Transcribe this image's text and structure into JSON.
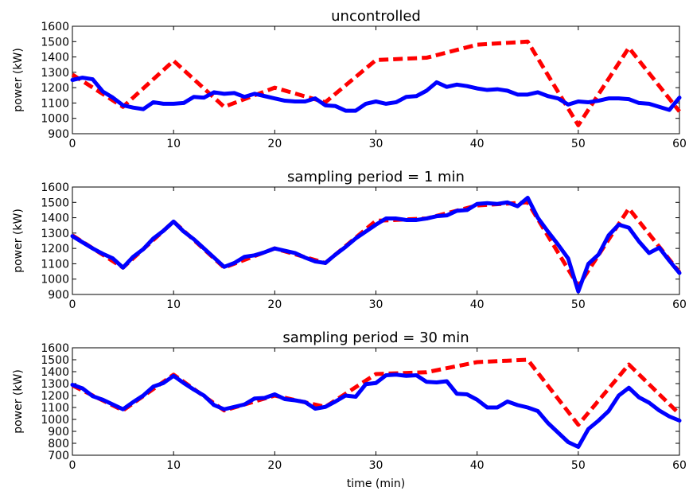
{
  "chart_data": [
    {
      "type": "line",
      "title": "uncontrolled",
      "xlabel": "",
      "ylabel": "power (kW)",
      "xlim": [
        0,
        60
      ],
      "ylim": [
        900,
        1600
      ],
      "xticks": [
        "0",
        "10",
        "20",
        "30",
        "40",
        "50",
        "60"
      ],
      "yticks": [
        "900",
        "1000",
        "1100",
        "1200",
        "1300",
        "1400",
        "1500",
        "1600"
      ],
      "grid": false,
      "series": [
        {
          "style": "dashed",
          "color": "#ff0000",
          "x": [
            0,
            5,
            10,
            15,
            20,
            25,
            30,
            35,
            40,
            45,
            50,
            55,
            60
          ],
          "y": [
            1285,
            1075,
            1375,
            1075,
            1200,
            1105,
            1380,
            1395,
            1480,
            1500,
            955,
            1460,
            1045
          ]
        },
        {
          "style": "solid",
          "color": "#0000ff",
          "x": [
            0,
            1,
            2,
            3,
            4,
            5,
            6,
            7,
            8,
            9,
            10,
            11,
            12,
            13,
            14,
            15,
            16,
            17,
            18,
            19,
            20,
            21,
            22,
            23,
            24,
            25,
            26,
            27,
            28,
            29,
            30,
            31,
            32,
            33,
            34,
            35,
            36,
            37,
            38,
            39,
            40,
            41,
            42,
            43,
            44,
            45,
            46,
            47,
            48,
            49,
            50,
            51,
            52,
            53,
            54,
            55,
            56,
            57,
            58,
            59,
            60
          ],
          "y": [
            1250,
            1265,
            1255,
            1175,
            1135,
            1085,
            1070,
            1060,
            1105,
            1095,
            1095,
            1100,
            1140,
            1135,
            1170,
            1160,
            1165,
            1140,
            1160,
            1145,
            1130,
            1115,
            1110,
            1110,
            1130,
            1085,
            1080,
            1050,
            1050,
            1095,
            1110,
            1095,
            1105,
            1140,
            1145,
            1180,
            1235,
            1205,
            1220,
            1210,
            1195,
            1185,
            1190,
            1180,
            1155,
            1155,
            1170,
            1145,
            1130,
            1090,
            1110,
            1105,
            1115,
            1130,
            1130,
            1125,
            1100,
            1095,
            1075,
            1055,
            1135
          ]
        }
      ]
    },
    {
      "type": "line",
      "title": "sampling period = 1 min",
      "xlabel": "",
      "ylabel": "power (kW)",
      "xlim": [
        0,
        60
      ],
      "ylim": [
        900,
        1600
      ],
      "xticks": [
        "0",
        "10",
        "20",
        "30",
        "40",
        "50",
        "60"
      ],
      "yticks": [
        "900",
        "1000",
        "1100",
        "1200",
        "1300",
        "1400",
        "1500",
        "1600"
      ],
      "grid": false,
      "series": [
        {
          "style": "dashed",
          "color": "#ff0000",
          "x": [
            0,
            5,
            10,
            15,
            20,
            25,
            30,
            35,
            40,
            45,
            50,
            55,
            60
          ],
          "y": [
            1285,
            1075,
            1375,
            1075,
            1200,
            1105,
            1380,
            1395,
            1480,
            1500,
            955,
            1460,
            1045
          ]
        },
        {
          "style": "solid",
          "color": "#0000ff",
          "x": [
            0,
            1,
            2,
            3,
            4,
            5,
            6,
            7,
            8,
            9,
            10,
            11,
            12,
            13,
            14,
            15,
            16,
            17,
            18,
            19,
            20,
            21,
            22,
            23,
            24,
            25,
            26,
            27,
            28,
            29,
            30,
            31,
            32,
            33,
            34,
            35,
            36,
            37,
            38,
            39,
            40,
            41,
            42,
            43,
            44,
            45,
            46,
            47,
            48,
            49,
            50,
            51,
            52,
            53,
            54,
            55,
            56,
            57,
            58,
            59,
            60
          ],
          "y": [
            1280,
            1240,
            1200,
            1165,
            1135,
            1075,
            1145,
            1195,
            1265,
            1315,
            1375,
            1310,
            1260,
            1200,
            1140,
            1080,
            1105,
            1145,
            1155,
            1175,
            1200,
            1185,
            1170,
            1140,
            1115,
            1105,
            1160,
            1210,
            1265,
            1310,
            1355,
            1395,
            1395,
            1385,
            1385,
            1395,
            1410,
            1415,
            1445,
            1450,
            1490,
            1495,
            1490,
            1500,
            1475,
            1530,
            1400,
            1310,
            1225,
            1135,
            920,
            1100,
            1160,
            1285,
            1355,
            1335,
            1245,
            1170,
            1205,
            1120,
            1040
          ]
        }
      ]
    },
    {
      "type": "line",
      "title": "sampling period = 30 min",
      "xlabel": "time (min)",
      "ylabel": "power (kW)",
      "xlim": [
        0,
        60
      ],
      "ylim": [
        700,
        1600
      ],
      "xticks": [
        "0",
        "10",
        "20",
        "30",
        "40",
        "50",
        "60"
      ],
      "yticks": [
        "700",
        "800",
        "900",
        "1000",
        "1100",
        "1200",
        "1300",
        "1400",
        "1500",
        "1600"
      ],
      "grid": false,
      "series": [
        {
          "style": "dashed",
          "color": "#ff0000",
          "x": [
            0,
            5,
            10,
            15,
            20,
            25,
            30,
            35,
            40,
            45,
            50,
            55,
            60
          ],
          "y": [
            1285,
            1075,
            1375,
            1075,
            1200,
            1105,
            1380,
            1395,
            1480,
            1500,
            955,
            1460,
            1045
          ]
        },
        {
          "style": "solid",
          "color": "#0000ff",
          "x": [
            0,
            1,
            2,
            3,
            4,
            5,
            6,
            7,
            8,
            9,
            10,
            11,
            12,
            13,
            14,
            15,
            16,
            17,
            18,
            19,
            20,
            21,
            22,
            23,
            24,
            25,
            26,
            27,
            28,
            29,
            30,
            31,
            32,
            33,
            34,
            35,
            36,
            37,
            38,
            39,
            40,
            41,
            42,
            43,
            44,
            45,
            46,
            47,
            48,
            49,
            50,
            51,
            52,
            53,
            54,
            55,
            56,
            57,
            58,
            59,
            60
          ],
          "y": [
            1290,
            1260,
            1195,
            1165,
            1125,
            1085,
            1145,
            1200,
            1275,
            1305,
            1365,
            1305,
            1250,
            1200,
            1120,
            1085,
            1105,
            1125,
            1175,
            1180,
            1210,
            1170,
            1160,
            1145,
            1090,
            1105,
            1150,
            1200,
            1190,
            1295,
            1305,
            1370,
            1375,
            1365,
            1370,
            1315,
            1310,
            1320,
            1215,
            1210,
            1165,
            1100,
            1100,
            1150,
            1120,
            1100,
            1070,
            970,
            890,
            810,
            770,
            920,
            990,
            1070,
            1200,
            1265,
            1185,
            1140,
            1075,
            1025,
            990
          ]
        }
      ]
    }
  ]
}
